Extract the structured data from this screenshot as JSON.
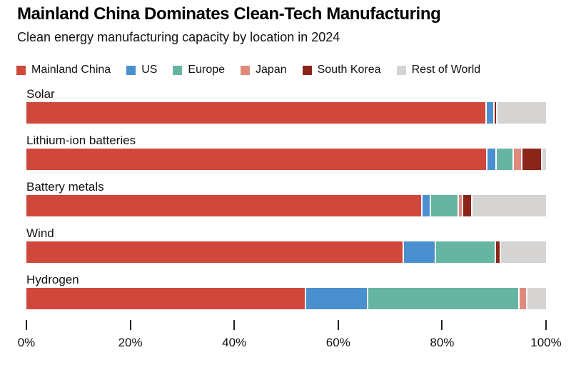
{
  "header": {
    "title": "Mainland China Dominates Clean-Tech Manufacturing",
    "subtitle": "Clean energy manufacturing capacity by location in 2024"
  },
  "legend": {
    "items": [
      {
        "label": "Mainland China",
        "color": "#d0473b"
      },
      {
        "label": "US",
        "color": "#4a90cf"
      },
      {
        "label": "Europe",
        "color": "#66b5a2"
      },
      {
        "label": "Japan",
        "color": "#e08a7c"
      },
      {
        "label": "South Korea",
        "color": "#8a2519"
      },
      {
        "label": "Rest of World",
        "color": "#d5d4d2"
      }
    ]
  },
  "chart_data": {
    "type": "bar",
    "stacked": true,
    "orientation": "horizontal",
    "title": "Mainland China Dominates Clean-Tech Manufacturing",
    "subtitle": "Clean energy manufacturing capacity by location in 2024",
    "unit": "%",
    "grid": false,
    "legend_position": "top",
    "categories": [
      "Solar",
      "Lithium-ion batteries",
      "Battery metals",
      "Wind",
      "Hydrogen"
    ],
    "series": [
      {
        "name": "Mainland China",
        "color": "#d0473b",
        "values": [
          88.3,
          88.4,
          75.9,
          72.4,
          53.6
        ]
      },
      {
        "name": "US",
        "color": "#4a90cf",
        "values": [
          1.5,
          1.9,
          1.7,
          6.2,
          11.9
        ]
      },
      {
        "name": "Europe",
        "color": "#66b5a2",
        "values": [
          0,
          3.3,
          5.3,
          11.5,
          29.1
        ]
      },
      {
        "name": "Japan",
        "color": "#e08a7c",
        "values": [
          0,
          1.6,
          0.9,
          0,
          1.5
        ]
      },
      {
        "name": "South Korea",
        "color": "#8a2519",
        "values": [
          0.6,
          3.8,
          1.8,
          1.0,
          0
        ]
      },
      {
        "name": "Rest of World",
        "color": "#d5d4d2",
        "values": [
          9.6,
          1.0,
          14.4,
          8.9,
          3.9
        ]
      }
    ],
    "xlim": [
      0,
      100
    ],
    "xtick_values": [
      0,
      20,
      40,
      60,
      80,
      100
    ],
    "xticks": [
      "0%",
      "20%",
      "40%",
      "60%",
      "80%",
      "100%"
    ]
  },
  "colors": {
    "background": "#ffffff",
    "segment_separator": "#ffffff",
    "tick_mark": "#222222",
    "text": "#111111"
  }
}
